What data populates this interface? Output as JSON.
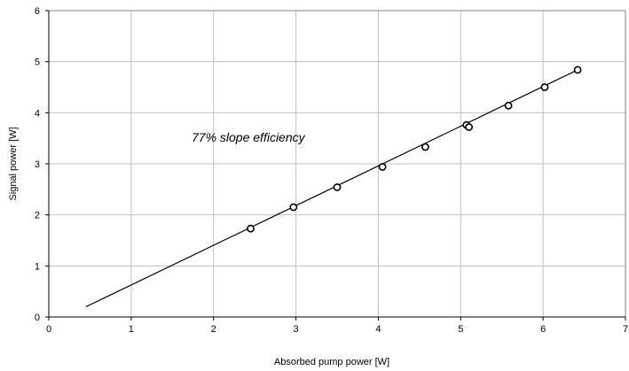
{
  "chart_data": {
    "type": "scatter",
    "xlabel": "Absorbed pump power [W]",
    "ylabel": "Signal power [W]",
    "xlim": [
      0,
      7
    ],
    "ylim": [
      0,
      6
    ],
    "x_ticks": [
      "0",
      "1",
      "2",
      "3",
      "4",
      "5",
      "6",
      "7"
    ],
    "y_ticks": [
      "0",
      "1",
      "2",
      "3",
      "4",
      "5",
      "6"
    ],
    "grid": true,
    "legend": "none",
    "annotation": "77% slope efficiency",
    "series": [
      {
        "type": "scatter",
        "marker": "open-circle",
        "color": "#000000",
        "points": [
          [
            2.45,
            1.73
          ],
          [
            2.97,
            2.15
          ],
          [
            3.5,
            2.54
          ],
          [
            4.05,
            2.94
          ],
          [
            4.57,
            3.33
          ],
          [
            5.07,
            3.76
          ],
          [
            5.1,
            3.72
          ],
          [
            5.58,
            4.14
          ],
          [
            6.02,
            4.5
          ],
          [
            6.42,
            4.84
          ]
        ]
      },
      {
        "type": "line",
        "color": "#000000",
        "points": [
          [
            0.45,
            0.2
          ],
          [
            6.42,
            4.84
          ]
        ]
      }
    ]
  }
}
